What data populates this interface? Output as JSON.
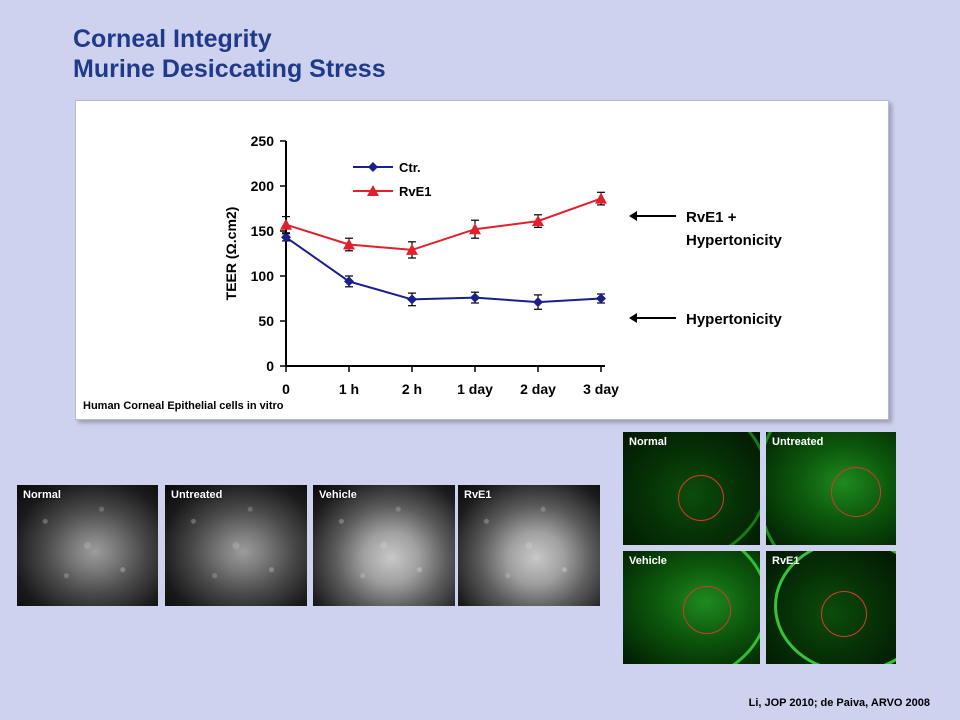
{
  "slide": {
    "title_line1": "Corneal Integrity",
    "title_line2": "Murine Desiccating Stress",
    "citation": "Li, JOP 2010; de Paiva, ARVO 2008"
  },
  "chart_data": {
    "type": "line",
    "categories": [
      "0",
      "1 h",
      "2 h",
      "1 day",
      "2 day",
      "3 day"
    ],
    "ylabel": "TEER (Ω.cm2)",
    "ylim": [
      0,
      250
    ],
    "yticks": [
      0,
      50,
      100,
      150,
      200,
      250
    ],
    "caption": "Human Corneal Epithelial cells in vitro",
    "legend_position": "top-left",
    "grid": false,
    "series": [
      {
        "name": "Ctr.",
        "color": "#1a1f8c",
        "marker": "diamond",
        "values": [
          143,
          94,
          74,
          76,
          71,
          75
        ],
        "errors": [
          4,
          6,
          7,
          6,
          8,
          5
        ]
      },
      {
        "name": "RvE1",
        "color": "#e0202a",
        "marker": "triangle",
        "values": [
          157,
          135,
          129,
          152,
          161,
          186
        ],
        "errors": [
          9,
          7,
          9,
          10,
          7,
          7
        ]
      }
    ],
    "annotations": [
      {
        "text_lines": [
          "RvE1 +",
          "Hypertonicity"
        ]
      },
      {
        "text_lines": [
          "Hypertonicity"
        ]
      }
    ]
  },
  "micrographs": [
    {
      "label": "Normal"
    },
    {
      "label": "Untreated"
    },
    {
      "label": "Vehicle"
    },
    {
      "label": "RvE1"
    }
  ],
  "fluorescein_panels": [
    {
      "label": "Normal"
    },
    {
      "label": "Untreated"
    },
    {
      "label": "Vehicle"
    },
    {
      "label": "RvE1"
    }
  ]
}
